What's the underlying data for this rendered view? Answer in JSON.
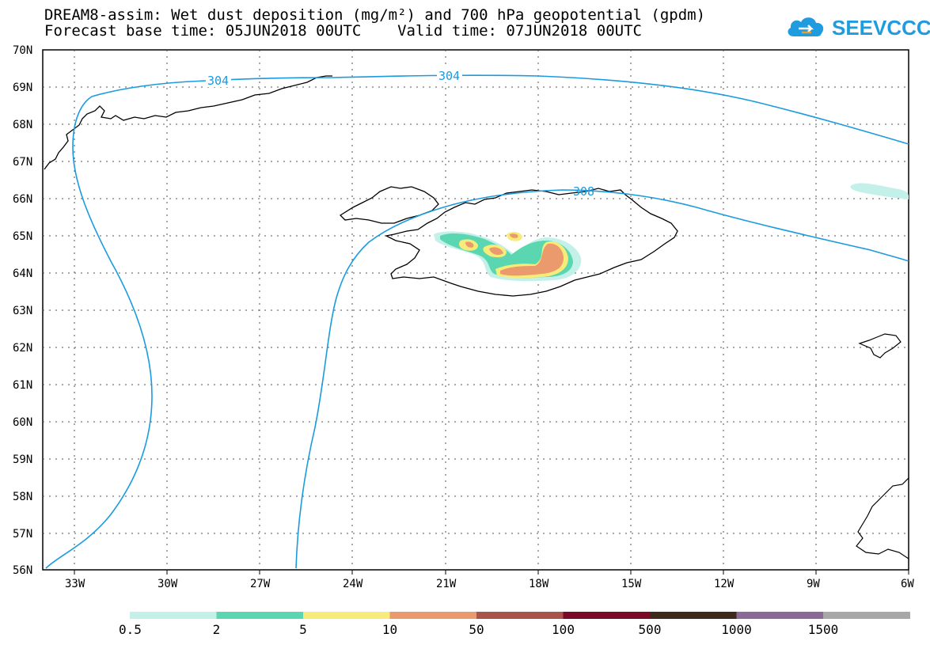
{
  "title": {
    "line1": "DREAM8-assim: Wet dust deposition (mg/m²) and 700 hPa geopotential (gpdm)",
    "line2": "Forecast base time: 05JUN2018 00UTC    Valid time: 07JUN2018 00UTC"
  },
  "logo": {
    "text": "SEEVCCC",
    "icon": "cloud-icon",
    "color": "#1f9be0"
  },
  "map": {
    "lat_labels": [
      "70N",
      "69N",
      "68N",
      "67N",
      "66N",
      "65N",
      "64N",
      "63N",
      "62N",
      "61N",
      "60N",
      "59N",
      "58N",
      "57N",
      "56N"
    ],
    "lon_labels": [
      "33W",
      "30W",
      "27W",
      "24W",
      "21W",
      "18W",
      "15W",
      "12W",
      "9W",
      "6W"
    ],
    "contour_labels": [
      "304",
      "304",
      "308"
    ],
    "contour_color": "#1a9be0"
  },
  "colorbar": {
    "labels": [
      "0.5",
      "2",
      "5",
      "10",
      "50",
      "100",
      "500",
      "1000",
      "1500"
    ],
    "colors": [
      "#c4f0ea",
      "#5ad7b0",
      "#f7ec7a",
      "#ea9a6c",
      "#a8544a",
      "#7a0a26",
      "#3d2a1a",
      "#8a6a96",
      "#a8a8a8"
    ]
  }
}
